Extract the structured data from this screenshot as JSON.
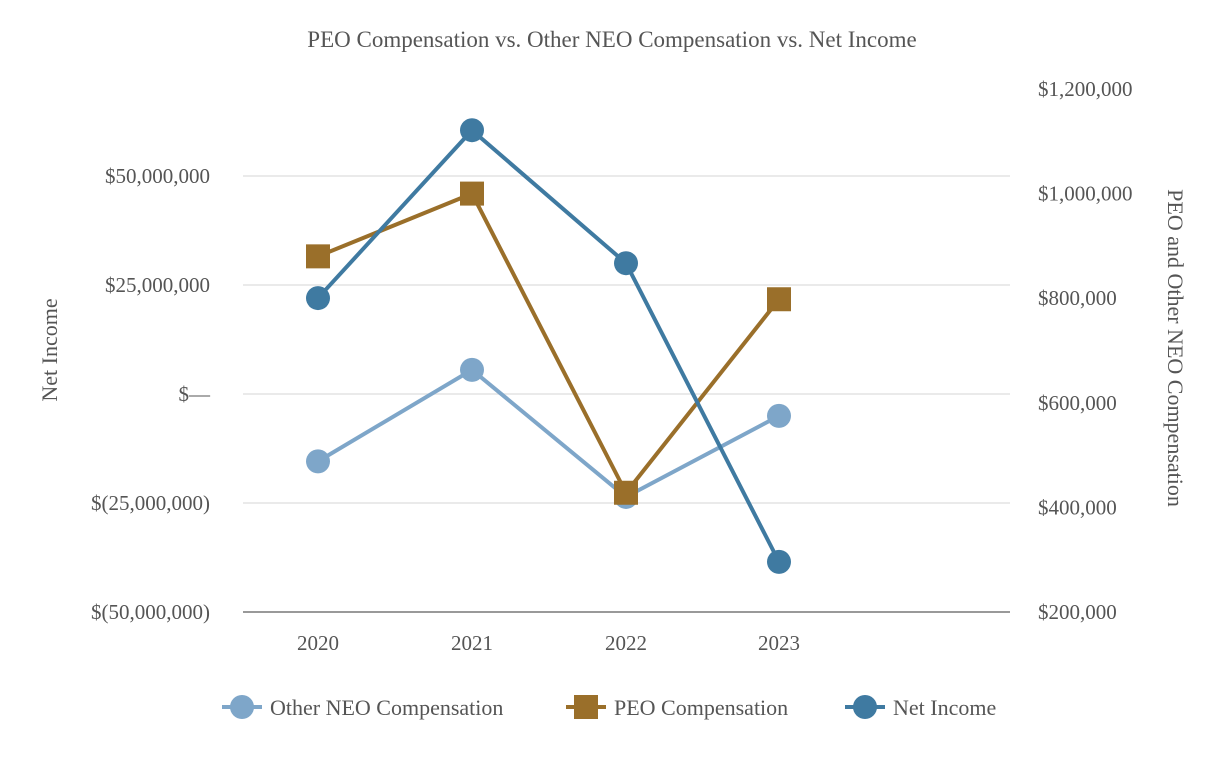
{
  "chart_data": {
    "type": "line",
    "title": "PEO Compensation vs. Other NEO Compensation vs. Net Income",
    "categories": [
      "2020",
      "2021",
      "2022",
      "2023"
    ],
    "left_axis": {
      "label": "Net Income",
      "range": [
        -50000000,
        50000000
      ],
      "ticks": [
        {
          "value": 50000000,
          "label": "$50,000,000"
        },
        {
          "value": 25000000,
          "label": "$25,000,000"
        },
        {
          "value": 0,
          "label": "$—"
        },
        {
          "value": -25000000,
          "label": "$(25,000,000)"
        },
        {
          "value": -50000000,
          "label": "$(50,000,000)"
        }
      ]
    },
    "right_axis": {
      "label": "PEO and Other NEO Compensation",
      "range": [
        200000,
        1200000
      ],
      "ticks": [
        {
          "value": 1200000,
          "label": "$1,200,000"
        },
        {
          "value": 1000000,
          "label": "$1,000,000"
        },
        {
          "value": 800000,
          "label": "$800,000"
        },
        {
          "value": 600000,
          "label": "$600,000"
        },
        {
          "value": 400000,
          "label": "$400,000"
        },
        {
          "value": 200000,
          "label": "$200,000"
        }
      ]
    },
    "grid": true,
    "legend_position": "bottom",
    "series": [
      {
        "name": "Other NEO Compensation",
        "axis": "right",
        "marker": "circle",
        "color": "#7EA6C9",
        "values": [
          488000,
          663000,
          420000,
          575000
        ]
      },
      {
        "name": "PEO Compensation",
        "axis": "right",
        "marker": "square",
        "color": "#9A6F2A",
        "values": [
          880000,
          1000000,
          428000,
          798000
        ]
      },
      {
        "name": "Net Income",
        "axis": "left",
        "marker": "circle",
        "color": "#3F7AA1",
        "values": [
          22000000,
          60500000,
          30000000,
          -38500000
        ]
      }
    ]
  }
}
